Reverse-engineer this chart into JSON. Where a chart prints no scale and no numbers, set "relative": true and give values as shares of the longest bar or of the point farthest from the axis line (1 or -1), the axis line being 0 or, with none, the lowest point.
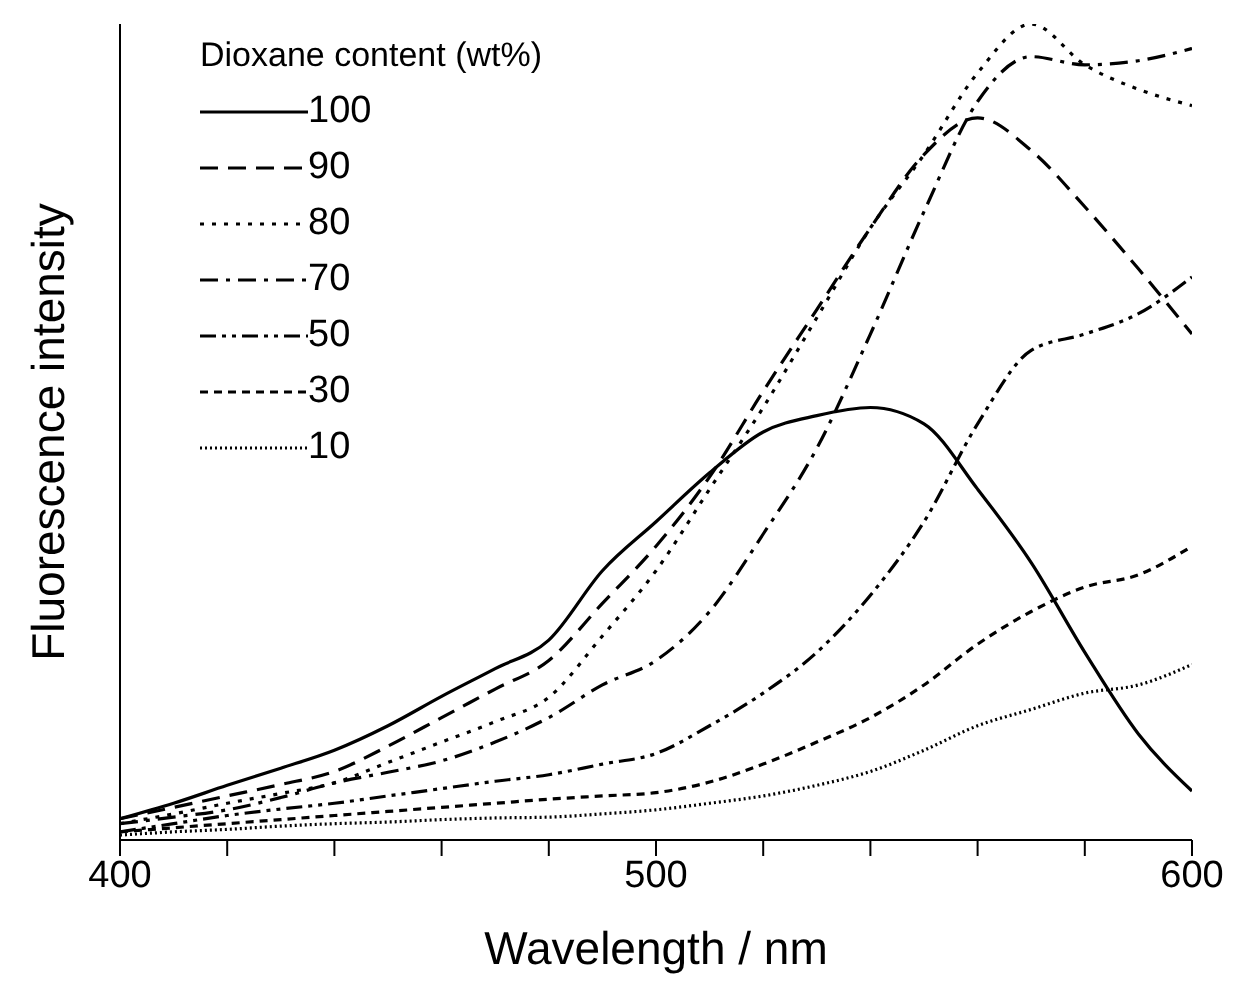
{
  "chart_data": {
    "type": "line",
    "xlabel": "Wavelength / nm",
    "ylabel": "Fluorescence intensity",
    "legend_title": "Dioxane content (wt%)",
    "legend": "top left",
    "relative": true,
    "grid": false,
    "marker": "none",
    "x": [
      400,
      410,
      420,
      430,
      440,
      450,
      460,
      470,
      480,
      490,
      500,
      510,
      520,
      530,
      540,
      550,
      560,
      570,
      580,
      590,
      600
    ],
    "xlim": [
      400,
      600
    ],
    "xticks": [
      400,
      {
        "value": 420,
        "label": null
      },
      {
        "value": 440,
        "label": null
      },
      {
        "value": 460,
        "label": null
      },
      {
        "value": 480,
        "label": null
      },
      500,
      {
        "value": 520,
        "label": null
      },
      {
        "value": 540,
        "label": null
      },
      {
        "value": 560,
        "label": null
      },
      {
        "value": 580,
        "label": null
      },
      600
    ],
    "series": [
      {
        "name": "100",
        "color": "#000000",
        "line_style": "solid",
        "values": [
          0.026,
          0.045,
          0.067,
          0.088,
          0.11,
          0.14,
          0.176,
          0.21,
          0.245,
          0.33,
          0.39,
          0.45,
          0.5,
          0.52,
          0.53,
          0.51,
          0.43,
          0.34,
          0.23,
          0.13,
          0.06
        ]
      },
      {
        "name": "90",
        "color": "#000000",
        "line_style": "dashed",
        "values": [
          0.026,
          0.04,
          0.054,
          0.068,
          0.084,
          0.115,
          0.15,
          0.185,
          0.22,
          0.29,
          0.36,
          0.445,
          0.55,
          0.65,
          0.75,
          0.84,
          0.885,
          0.845,
          0.776,
          0.7,
          0.62
        ]
      },
      {
        "name": "80",
        "color": "#000000",
        "line_style": "dotted",
        "values": [
          0.02,
          0.032,
          0.045,
          0.057,
          0.07,
          0.095,
          0.12,
          0.145,
          0.175,
          0.25,
          0.33,
          0.43,
          0.53,
          0.64,
          0.75,
          0.84,
          0.94,
          1.0,
          0.95,
          0.92,
          0.9
        ]
      },
      {
        "name": "70",
        "color": "#000000",
        "line_style": "dashed",
        "values": [
          0.02,
          0.028,
          0.037,
          0.052,
          0.07,
          0.083,
          0.097,
          0.12,
          0.15,
          0.19,
          0.22,
          0.28,
          0.375,
          0.48,
          0.62,
          0.77,
          0.905,
          0.96,
          0.95,
          0.955,
          0.97
        ]
      },
      {
        "name": "50",
        "color": "#000000",
        "line_style": "dashed",
        "values": [
          0.01,
          0.02,
          0.03,
          0.038,
          0.045,
          0.054,
          0.063,
          0.072,
          0.08,
          0.093,
          0.106,
          0.14,
          0.18,
          0.23,
          0.3,
          0.39,
          0.51,
          0.6,
          0.62,
          0.645,
          0.69
        ]
      },
      {
        "name": "30",
        "color": "#000000",
        "line_style": "dashed",
        "values": [
          0.01,
          0.015,
          0.02,
          0.025,
          0.03,
          0.035,
          0.04,
          0.045,
          0.05,
          0.054,
          0.058,
          0.071,
          0.093,
          0.12,
          0.15,
          0.19,
          0.24,
          0.28,
          0.31,
          0.325,
          0.36
        ]
      },
      {
        "name": "10",
        "color": "#000000",
        "line_style": "dotted",
        "values": [
          0.006,
          0.01,
          0.013,
          0.017,
          0.02,
          0.022,
          0.025,
          0.027,
          0.028,
          0.032,
          0.037,
          0.045,
          0.054,
          0.067,
          0.084,
          0.11,
          0.14,
          0.16,
          0.18,
          0.19,
          0.215
        ]
      }
    ]
  }
}
